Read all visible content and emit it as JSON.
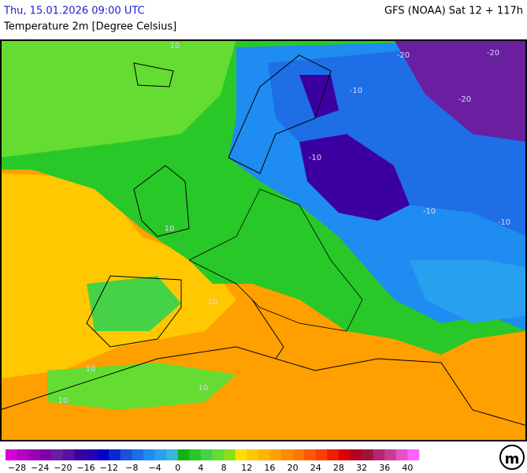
{
  "header": {
    "valid_time": "Thu, 15.01.2026 09:00 UTC",
    "model_run": "GFS (NOAA) Sat 12 + 117h",
    "parameter": "Temperature 2m [Degree Celsius]"
  },
  "map": {
    "contour_labels": [
      {
        "text": "10"
      },
      {
        "text": "-10"
      },
      {
        "text": "-20"
      },
      {
        "text": "-20"
      },
      {
        "text": "-20"
      },
      {
        "text": "-10"
      },
      {
        "text": "-10"
      },
      {
        "text": "-10"
      },
      {
        "text": "10"
      },
      {
        "text": "10"
      },
      {
        "text": "10"
      },
      {
        "text": "10"
      },
      {
        "text": "10"
      }
    ]
  },
  "legend": {
    "labels": [
      "−28",
      "−24",
      "−20",
      "−16",
      "−12",
      "−8",
      "−4",
      "0",
      "4",
      "8",
      "12",
      "16",
      "20",
      "24",
      "28",
      "32",
      "36",
      "40"
    ],
    "colors": [
      "#d400d4",
      "#b400c8",
      "#9a00b4",
      "#8000a8",
      "#6a1ea0",
      "#5a10a0",
      "#3c00a0",
      "#2800b4",
      "#0000c8",
      "#0a28d2",
      "#1e50dc",
      "#1e6ee6",
      "#1e8cf0",
      "#28a0f0",
      "#3cb4dc",
      "#10b410",
      "#28c828",
      "#46d246",
      "#64dc32",
      "#8cdc1e",
      "#ffe000",
      "#ffc800",
      "#ffb400",
      "#ffa000",
      "#ff8c00",
      "#ff7800",
      "#ff5a00",
      "#ff3c00",
      "#f01e00",
      "#dc0000",
      "#b4001e",
      "#a0143c",
      "#b4286e",
      "#c83c96",
      "#e650c8",
      "#ff64ff"
    ]
  }
}
